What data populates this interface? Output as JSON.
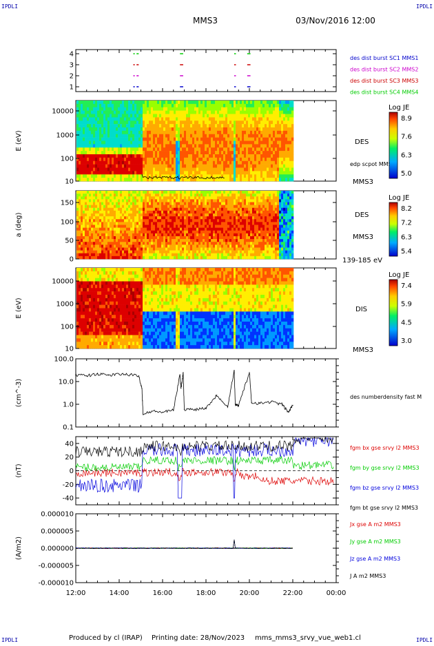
{
  "header": {
    "corner_left": "IPDLI",
    "corner_right": "IPDLI",
    "mission": "MMS3",
    "datetime": "03/Nov/2016 12:00"
  },
  "footer": {
    "produced": "Produced by cl (IRAP)",
    "printing": "Printing date: 28/Nov/2023",
    "script": "mms_mms3_srvy_vue_web1.cl",
    "corner_left": "IPDLI",
    "corner_right": "IPDLI"
  },
  "time_axis": {
    "ticks": [
      "12:00",
      "14:00",
      "16:00",
      "18:00",
      "20:00",
      "22:00",
      "00:00"
    ],
    "data_end": "22:00"
  },
  "colors": {
    "sc1": "#0000cc",
    "sc2": "#cc00cc",
    "sc3": "#cc0000",
    "sc4": "#00cc00",
    "bx": "#dd0000",
    "by": "#00cc00",
    "bz": "#0000dd",
    "bt": "#000000"
  },
  "chart_data": [
    {
      "type": "scatter",
      "id": "burst",
      "yticks": [
        "4",
        "3",
        "2",
        "1"
      ],
      "legend": [
        {
          "label": "des dist burst SC1 MMS1",
          "color": "#0000cc"
        },
        {
          "label": "des dist burst SC2 MMS2",
          "color": "#cc00cc"
        },
        {
          "label": "des dist burst SC3 MMS3",
          "color": "#cc0000"
        },
        {
          "label": "des dist burst SC4 MMS4",
          "color": "#00cc00"
        }
      ],
      "intervals_hours": [
        [
          14.65,
          14.72
        ],
        [
          14.8,
          14.9
        ],
        [
          16.8,
          16.95
        ],
        [
          19.3,
          19.38
        ],
        [
          19.9,
          20.05
        ]
      ]
    },
    {
      "type": "heatmap",
      "id": "des-energy",
      "ylabel": "E (eV)",
      "yticks": [
        "10000",
        "1000",
        "100",
        "10"
      ],
      "ylim": [
        10,
        30000
      ],
      "yscale": "log",
      "instrument": "DES",
      "overlay_label": "edp scpot MMS3",
      "sc_label": "MMS3",
      "colorbar": {
        "title": "Log JE",
        "ticks": [
          "8.9",
          "7.6",
          "6.3",
          "5.0"
        ],
        "range": [
          5.0,
          8.9
        ]
      }
    },
    {
      "type": "heatmap",
      "id": "des-pitch",
      "ylabel": "a (deg)",
      "yticks": [
        "150",
        "100",
        "50",
        "0"
      ],
      "ylim": [
        0,
        180
      ],
      "instrument": "DES",
      "sc_label": "MMS3",
      "energy_label": "139-185 eV",
      "colorbar": {
        "title": "Log JE",
        "ticks": [
          "8.2",
          "7.2",
          "6.3",
          "5.4"
        ],
        "range": [
          5.4,
          8.2
        ]
      }
    },
    {
      "type": "heatmap",
      "id": "dis-energy",
      "ylabel": "E (eV)",
      "yticks": [
        "10000",
        "1000",
        "100",
        "10"
      ],
      "ylim": [
        10,
        30000
      ],
      "yscale": "log",
      "instrument": "DIS",
      "sc_label": "MMS3",
      "colorbar": {
        "title": "Log JE",
        "ticks": [
          "7.4",
          "5.9",
          "4.5",
          "3.0"
        ],
        "range": [
          3.0,
          7.4
        ]
      }
    },
    {
      "type": "line",
      "id": "density",
      "ylabel": "(cm^-3)",
      "yticks": [
        "100.0",
        "10.0",
        "1.0",
        "0.1"
      ],
      "ylim": [
        0.1,
        100
      ],
      "yscale": "log",
      "legend": [
        {
          "label": "des numberdensity fast M",
          "color": "#000000"
        }
      ],
      "x_hours": [
        12.0,
        12.5,
        13.0,
        13.5,
        14.0,
        14.5,
        14.9,
        15.05,
        15.1,
        15.5,
        16.0,
        16.5,
        16.8,
        16.85,
        16.95,
        17.0,
        17.5,
        18.0,
        18.5,
        19.0,
        19.3,
        19.35,
        19.5,
        20.0,
        20.1,
        20.5,
        21.0,
        21.5,
        21.8,
        22.0
      ],
      "y": [
        20,
        18,
        22,
        19,
        21,
        20,
        18,
        5,
        0.35,
        0.5,
        0.45,
        0.55,
        20,
        5,
        25,
        0.6,
        0.6,
        0.7,
        2.5,
        0.8,
        30,
        1.0,
        0.9,
        25,
        1.2,
        1.1,
        1.3,
        1.0,
        0.45,
        0.9
      ]
    },
    {
      "type": "line",
      "id": "bfield",
      "ylabel": "(nT)",
      "yticks": [
        "40",
        "20",
        "0",
        "-20",
        "-40"
      ],
      "ylim": [
        -50,
        50
      ],
      "series": [
        {
          "name": "fgm bx gse srvy l2 MMS3",
          "color": "#dd0000"
        },
        {
          "name": "fgm by gse srvy l2 MMS3",
          "color": "#00cc00"
        },
        {
          "name": "fgm bz gse srvy l2 MMS3",
          "color": "#0000dd"
        },
        {
          "name": "fgm bt gse srvy l2 MMS3",
          "color": "#000000"
        }
      ]
    },
    {
      "type": "line",
      "id": "current",
      "ylabel": "(A/m2)",
      "yticks": [
        "0.000010",
        "0.000005",
        "0.000000",
        "-0.000005",
        "-0.000010"
      ],
      "ylim": [
        -1e-05,
        1e-05
      ],
      "series": [
        {
          "name": "Jx gse A m2 MMS3",
          "color": "#dd0000"
        },
        {
          "name": "Jy gse A m2 MMS3",
          "color": "#00cc00"
        },
        {
          "name": "Jz gse A m2 MMS3",
          "color": "#0000dd"
        },
        {
          "name": "J A m2 MMS3",
          "color": "#000000"
        }
      ]
    }
  ]
}
